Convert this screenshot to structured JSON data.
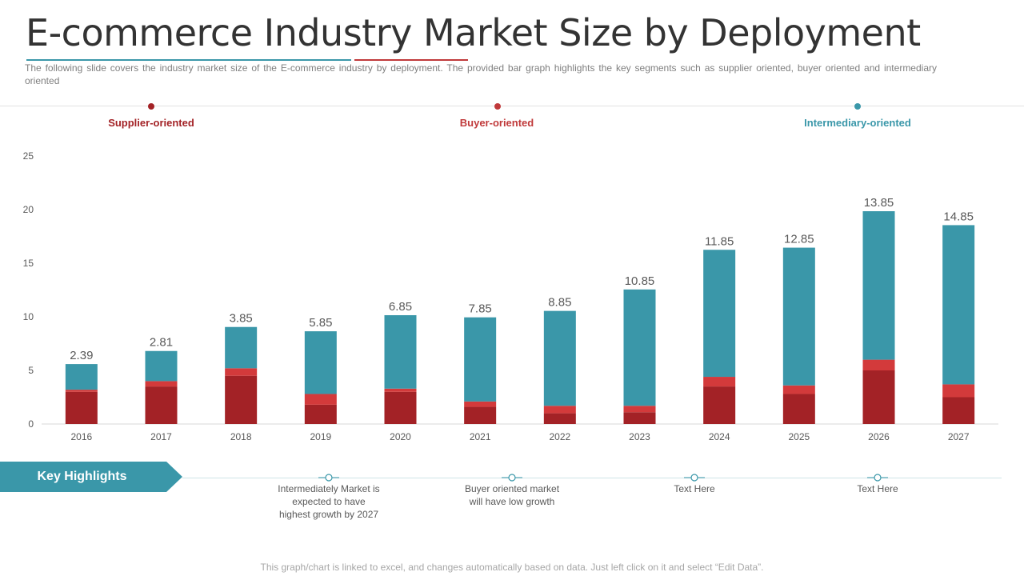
{
  "title": "E-commerce Industry Market Size by Deployment",
  "subtitle": "The following slide covers the industry market size of the E-commerce industry by deployment. The provided bar graph highlights the key segments such as supplier oriented, buyer oriented and intermediary oriented",
  "segments": [
    {
      "label": "Supplier-oriented",
      "color": "#a32226"
    },
    {
      "label": "Buyer-oriented",
      "color": "#c0393a"
    },
    {
      "label": "Intermediary-oriented",
      "color": "#3a97a9"
    }
  ],
  "chart_data": {
    "type": "bar",
    "stacked": true,
    "categories": [
      "2016",
      "2017",
      "2018",
      "2019",
      "2020",
      "2021",
      "2022",
      "2023",
      "2024",
      "2025",
      "2026",
      "2027"
    ],
    "series": [
      {
        "name": "Supplier-oriented",
        "color": "#a32226",
        "values": [
          3.0,
          3.5,
          4.5,
          1.8,
          3.0,
          1.6,
          1.0,
          1.1,
          3.5,
          2.8,
          5.0,
          2.5
        ]
      },
      {
        "name": "Buyer-oriented",
        "color": "#d33a3b",
        "values": [
          0.2,
          0.5,
          0.7,
          1.0,
          0.3,
          0.5,
          0.7,
          0.6,
          0.9,
          0.8,
          1.0,
          1.2
        ]
      },
      {
        "name": "Intermediary-oriented",
        "color": "#3a97a9",
        "values": [
          2.39,
          2.81,
          3.85,
          5.85,
          6.85,
          7.85,
          8.85,
          10.85,
          11.85,
          12.85,
          13.85,
          14.85
        ]
      }
    ],
    "data_labels": [
      "2.39",
      "2.81",
      "3.85",
      "5.85",
      "6.85",
      "7.85",
      "8.85",
      "10.85",
      "11.85",
      "12.85",
      "13.85",
      "14.85"
    ],
    "ylim": [
      0,
      25
    ],
    "yticks": [
      "0",
      "5",
      "10",
      "15",
      "20",
      "25"
    ],
    "grid": false,
    "legend": "top"
  },
  "key_highlights": {
    "label": "Key Highlights",
    "color": "#3a97a9",
    "notes": [
      "Intermediately Market is expected to have highest growth by 2027",
      "Buyer oriented market will have low growth",
      "Text Here",
      "Text Here"
    ]
  },
  "footer": "This graph/chart is linked to excel, and changes automatically based on data. Just left click on it and select “Edit Data”."
}
